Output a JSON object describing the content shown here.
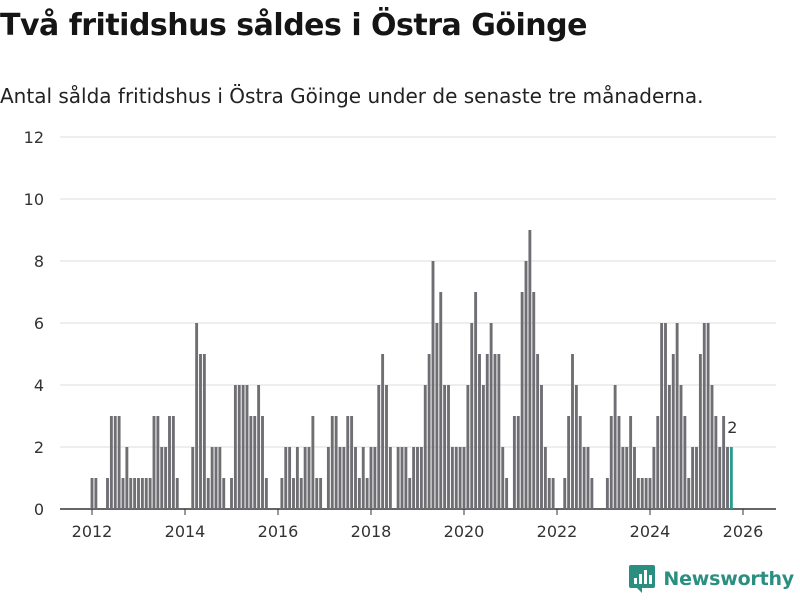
{
  "title": "Två fritidshus såldes i Östra Göinge",
  "subtitle": "Antal sålda fritidshus i Östra Göinge under de senaste tre månaderna.",
  "brand": {
    "name": "Newsworthy",
    "icon": "newsworthy-logo-icon"
  },
  "colors": {
    "bar": "#6e6e73",
    "highlight": "#2a9d8f",
    "grid": "#dddddd",
    "axis": "#333333",
    "brand": "#2a8f80"
  },
  "chart_data": {
    "type": "bar",
    "title": "Två fritidshus såldes i Östra Göinge",
    "xlabel": "",
    "ylabel": "",
    "ylim": [
      0,
      12
    ],
    "yticks": [
      0,
      2,
      4,
      6,
      8,
      10,
      12
    ],
    "xticks": [
      "2012",
      "2014",
      "2016",
      "2018",
      "2020",
      "2022",
      "2024",
      "2026"
    ],
    "start": "2012-01",
    "frequency": "monthly",
    "last_value_label": "2",
    "values": [
      1,
      1,
      0,
      0,
      1,
      3,
      3,
      3,
      1,
      2,
      1,
      1,
      1,
      1,
      1,
      1,
      3,
      3,
      2,
      2,
      3,
      3,
      1,
      0,
      0,
      0,
      2,
      6,
      5,
      5,
      1,
      2,
      2,
      2,
      1,
      0,
      1,
      4,
      4,
      4,
      4,
      3,
      3,
      4,
      3,
      1,
      0,
      0,
      0,
      1,
      2,
      2,
      1,
      2,
      1,
      2,
      2,
      3,
      1,
      1,
      0,
      2,
      3,
      3,
      2,
      2,
      3,
      3,
      2,
      1,
      2,
      1,
      2,
      2,
      4,
      5,
      4,
      2,
      0,
      2,
      2,
      2,
      1,
      2,
      2,
      2,
      4,
      5,
      8,
      6,
      7,
      4,
      4,
      2,
      2,
      2,
      2,
      4,
      6,
      7,
      5,
      4,
      5,
      6,
      5,
      5,
      2,
      1,
      0,
      3,
      3,
      7,
      8,
      9,
      7,
      5,
      4,
      2,
      1,
      1,
      0,
      0,
      1,
      3,
      5,
      4,
      3,
      2,
      2,
      1,
      0,
      0,
      0,
      1,
      3,
      4,
      3,
      2,
      2,
      3,
      2,
      1,
      1,
      1,
      1,
      2,
      3,
      6,
      6,
      4,
      5,
      6,
      4,
      3,
      1,
      2,
      2,
      5,
      6,
      6,
      4,
      3,
      2,
      3,
      2,
      2
    ]
  }
}
